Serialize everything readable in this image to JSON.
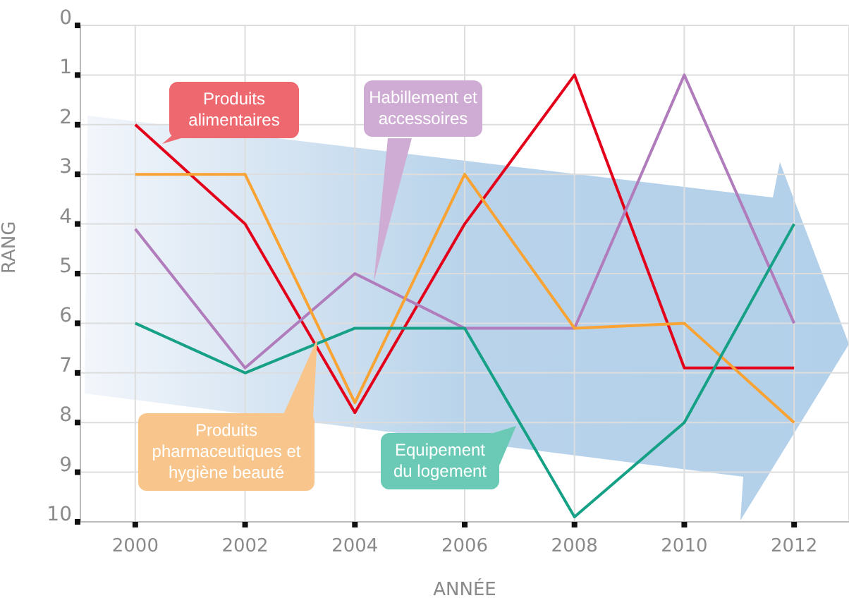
{
  "chart_data": {
    "type": "line",
    "xlabel": "ANNÉE",
    "ylabel": "RANG",
    "x": [
      2000,
      2002,
      2004,
      2006,
      2008,
      2010,
      2012
    ],
    "xlim": [
      1999,
      2013
    ],
    "xticks": [
      2000,
      2002,
      2004,
      2006,
      2008,
      2010,
      2012
    ],
    "ylim": [
      10,
      0
    ],
    "yticks": [
      0,
      1,
      2,
      3,
      4,
      5,
      6,
      7,
      8,
      9,
      10
    ],
    "grid": true,
    "marker": "none",
    "line_style": "solid",
    "series": [
      {
        "name": "Produits alimentaires",
        "color": "#e3001b",
        "values": [
          2,
          4,
          7.8,
          4,
          1,
          6.9,
          6.9
        ]
      },
      {
        "name": "Habillement et accessoires",
        "color": "#b07cbb",
        "values": [
          4.1,
          6.9,
          5,
          6.1,
          6.1,
          1,
          6
        ]
      },
      {
        "name": "Produits pharmaceutiques et hygiène beauté",
        "color": "#f8a333",
        "values": [
          3,
          3,
          7.6,
          3,
          6.1,
          6,
          8
        ]
      },
      {
        "name": "Equipement du logement",
        "color": "#16a085",
        "values": [
          6,
          7,
          6.1,
          6.1,
          9.9,
          8,
          4
        ]
      }
    ]
  }
}
